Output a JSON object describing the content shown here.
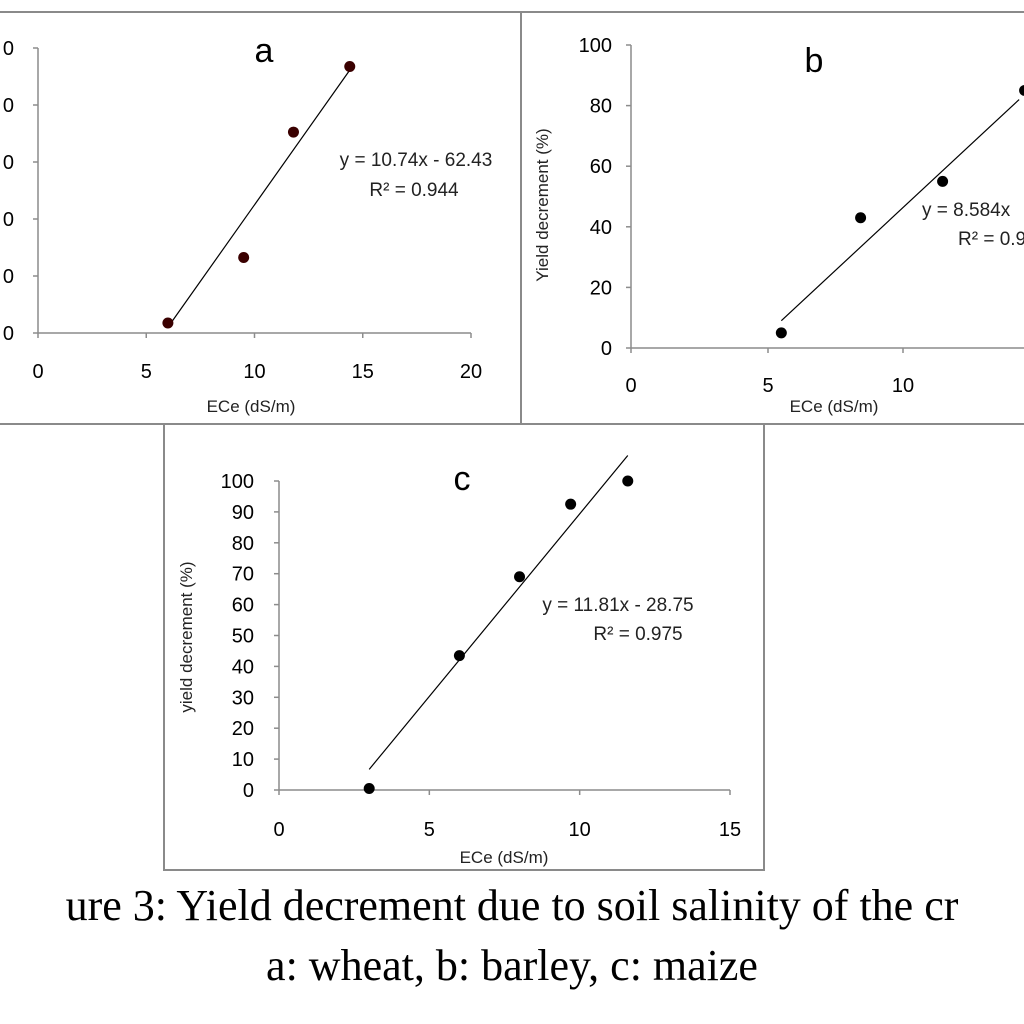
{
  "caption": {
    "line1": "ure 3: Yield decrement due to soil salinity of the cr",
    "line2": "a: wheat, b: barley, c: maize"
  },
  "chart_data": [
    {
      "type": "scatter",
      "panel_label": "a",
      "xlabel": "ECe (dS/m)",
      "ylabel": "",
      "xticks": [
        "0",
        "5",
        "10",
        "15",
        "20"
      ],
      "yticks": [
        "0",
        "0",
        "0",
        "0",
        "0",
        "0"
      ],
      "xlim": [
        0,
        20
      ],
      "ylim": [
        0,
        100
      ],
      "points": [
        {
          "x": 6.0,
          "y": 3.5
        },
        {
          "x": 9.5,
          "y": 26.5
        },
        {
          "x": 11.8,
          "y": 70.5
        },
        {
          "x": 14.4,
          "y": 93.5
        }
      ],
      "trendline": {
        "slope": 10.74,
        "intercept": -62.43
      },
      "equation": "y = 10.74x - 62.43",
      "r2": "R² = 0.944",
      "colors": {
        "points": "#3a0000",
        "line": "#000000"
      }
    },
    {
      "type": "scatter",
      "panel_label": "b",
      "xlabel": "ECe (dS/m)",
      "ylabel": "Yield decrement (%)",
      "xticks": [
        "0",
        "5",
        "10",
        "1"
      ],
      "yticks": [
        "0",
        "20",
        "40",
        "60",
        "80",
        "100"
      ],
      "xlim": [
        0,
        15
      ],
      "ylim": [
        0,
        100
      ],
      "points": [
        {
          "x": 5.5,
          "y": 5
        },
        {
          "x": 8.4,
          "y": 43
        },
        {
          "x": 11.4,
          "y": 55
        },
        {
          "x": 14.4,
          "y": 85
        }
      ],
      "trendline_segment": [
        [
          5.5,
          9
        ],
        [
          14.2,
          82
        ]
      ],
      "equation": "y = 8.584x",
      "r2": "R² = 0.9",
      "colors": {
        "points": "#000000",
        "line": "#000000"
      }
    },
    {
      "type": "scatter",
      "panel_label": "c",
      "xlabel": "ECe (dS/m)",
      "ylabel": "yield decrement (%)",
      "xticks": [
        "0",
        "5",
        "10",
        "15"
      ],
      "yticks": [
        "0",
        "10",
        "20",
        "30",
        "40",
        "50",
        "60",
        "70",
        "80",
        "90",
        "100"
      ],
      "xlim": [
        0,
        15
      ],
      "ylim": [
        0,
        100
      ],
      "points": [
        {
          "x": 3,
          "y": 0.5
        },
        {
          "x": 6,
          "y": 43.5
        },
        {
          "x": 8,
          "y": 69
        },
        {
          "x": 9.7,
          "y": 92.5
        },
        {
          "x": 11.6,
          "y": 100
        }
      ],
      "trendline": {
        "slope": 11.81,
        "intercept": -28.75
      },
      "equation": "y = 11.81x - 28.75",
      "r2": "R² = 0.975",
      "colors": {
        "points": "#000000",
        "line": "#000000"
      }
    }
  ]
}
